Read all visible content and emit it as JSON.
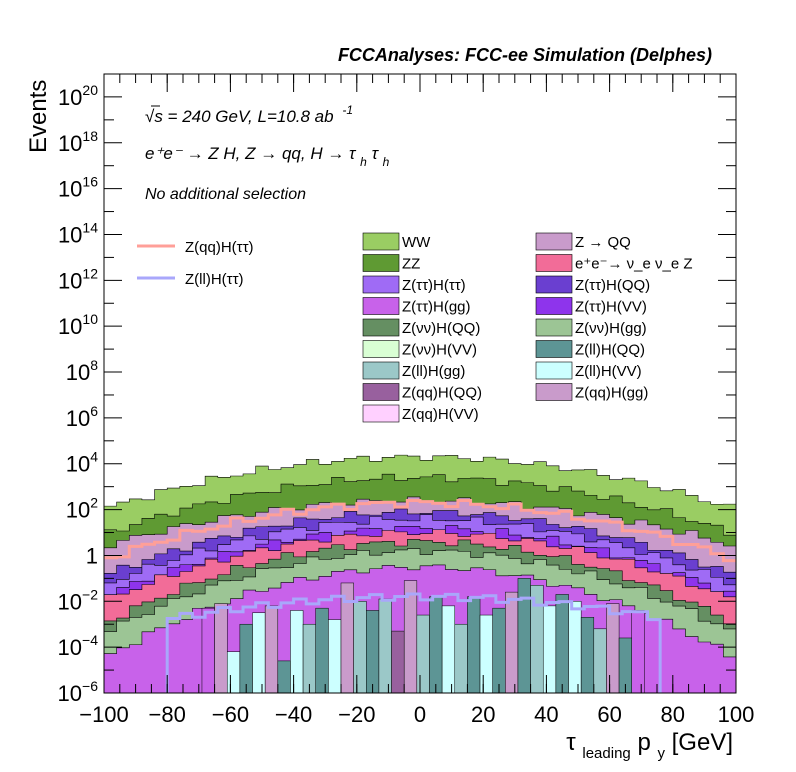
{
  "chart_data": {
    "type": "histogram",
    "title": "FCCAnalyses: FCC-ee Simulation (Delphes)",
    "annotations": {
      "energy": "√s = 240 GeV, L=10.8 ab",
      "energy_exp": "-1",
      "process": "e⁺e⁻ → Z H, Z → qq, H → τ",
      "process_sub1": "h",
      "process_tau2": "τ",
      "process_sub2": "h",
      "selection": "No additional selection"
    },
    "xlabel": "τ",
    "xlabel_sub": "leading",
    "xlabel_rest": " p",
    "xlabel_sub2": "y",
    "xlabel_unit": " [GeV]",
    "ylabel": "Events",
    "xlim": [
      -100,
      100
    ],
    "ylog": true,
    "ylim_exp": [
      -6,
      21
    ],
    "x_ticks": [
      "−100",
      "−80",
      "−60",
      "−40",
      "−20",
      "0",
      "20",
      "40",
      "60",
      "80",
      "100"
    ],
    "x_tick_values": [
      -100,
      -80,
      -60,
      -40,
      -20,
      0,
      20,
      40,
      60,
      80,
      100
    ],
    "y_ticks": [
      {
        "exp": -6,
        "base": "10",
        "sup": "−6"
      },
      {
        "exp": -4,
        "base": "10",
        "sup": "−4"
      },
      {
        "exp": -2,
        "base": "10",
        "sup": "−2"
      },
      {
        "exp": 0,
        "base": "1",
        "sup": ""
      },
      {
        "exp": 2,
        "base": "10",
        "sup": "2"
      },
      {
        "exp": 4,
        "base": "10",
        "sup": "4"
      },
      {
        "exp": 6,
        "base": "10",
        "sup": "6"
      },
      {
        "exp": 8,
        "base": "10",
        "sup": "8"
      },
      {
        "exp": 10,
        "base": "10",
        "sup": "10"
      },
      {
        "exp": 12,
        "base": "10",
        "sup": "12"
      },
      {
        "exp": 14,
        "base": "10",
        "sup": "14"
      },
      {
        "exp": 16,
        "base": "10",
        "sup": "16"
      },
      {
        "exp": 18,
        "base": "10",
        "sup": "18"
      },
      {
        "exp": 20,
        "base": "10",
        "sup": "20"
      }
    ],
    "bkg_envelopes": [
      {
        "name": "WW",
        "color": "#9ACD63",
        "center_exp": 4.3,
        "edge_exp": 2.0
      },
      {
        "name": "ZZ",
        "color": "#5F9A33",
        "center_exp": 3.4,
        "edge_exp": 0.9
      },
      {
        "name": "Z → QQ",
        "color": "#C99BCB",
        "center_exp": 2.4,
        "edge_exp": 0.4
      },
      {
        "name": "Z(ττ)H(QQ)",
        "color": "#6A3FD0",
        "center_exp": 1.9,
        "edge_exp": -0.9
      },
      {
        "name": "Z(ττ)H(ττ)",
        "color": "#9F6BF5",
        "center_exp": 1.6,
        "edge_exp": -1.3
      },
      {
        "name": "Z(ττ)H(VV)",
        "color": "#8E34EC",
        "center_exp": 1.2,
        "edge_exp": -1.8
      },
      {
        "name": "e⁺e⁻→ ν_e ν_e Z",
        "color": "#F26C98",
        "center_exp": 1.0,
        "edge_exp": -2.0
      },
      {
        "name": "Z(νν)H(QQ)",
        "color": "#658F62",
        "center_exp": 0.6,
        "edge_exp": -3.0
      },
      {
        "name": "Z(νν)H(gg)",
        "color": "#9CC595",
        "center_exp": 0.2,
        "edge_exp": -3.4
      },
      {
        "name": "Z(ττ)H(gg)",
        "color": "#C862EA",
        "center_exp": -0.5,
        "edge_exp": -4.5
      }
    ],
    "low_bars": {
      "x": [
        -67,
        -63,
        -59,
        -55,
        -51,
        -47,
        -43,
        -39,
        -35,
        -31,
        -27,
        -23,
        -19,
        -15,
        -11,
        -7,
        -3,
        1,
        5,
        9,
        13,
        17,
        21,
        25,
        29,
        33,
        37,
        41,
        45,
        49,
        53,
        57,
        61,
        65,
        69
      ],
      "exp": [
        -2.3,
        -2.1,
        -4.2,
        -3.0,
        -2.5,
        -2.2,
        -4.6,
        -2.4,
        -3.0,
        -2.3,
        -2.8,
        -1.2,
        -2.0,
        -2.4,
        -1.9,
        -3.3,
        -1.1,
        -2.6,
        -1.8,
        -2.2,
        -3.0,
        -1.8,
        -2.6,
        -2.3,
        -1.6,
        -1.0,
        -1.3,
        -2.2,
        -1.7,
        -2.0,
        -2.7,
        -3.2,
        -2.1,
        -3.6,
        -2.4
      ],
      "colors": [
        "#C862EA",
        "#C99BCB",
        "#CCFFFF",
        "#5D9595",
        "#CCFFFF",
        "#C99BCB",
        "#5D9595",
        "#CCFFFF",
        "#9BC8C8",
        "#5D9595",
        "#CCFFFF",
        "#C99BCB",
        "#9BC8C8",
        "#5D9595",
        "#9BC8C8",
        "#98609E",
        "#C99BCB",
        "#9BC8C8",
        "#5D9595",
        "#CCFFFF",
        "#9BC8C8",
        "#5D9595",
        "#CCFFFF",
        "#5D9595",
        "#C99BCB",
        "#5D9595",
        "#9BC8C8",
        "#CCFFFF",
        "#5D9595",
        "#CCFFFF",
        "#5D9595",
        "#9BC8C8",
        "#C99BCB",
        "#5D9595",
        "#C862EA"
      ]
    },
    "signal_lines": [
      {
        "name": "Z(qq)H(ττ)",
        "color": "#FF9F98",
        "center_exp": 2.3,
        "edge_exp": -0.2
      },
      {
        "name": "Z(ll)H(ττ)",
        "color": "#A9A7FB",
        "center_exp": -1.8,
        "edge_exp": -2.8,
        "range": [
          -80,
          76
        ]
      }
    ],
    "legend": {
      "placement": "top-right",
      "signals": [
        {
          "label": "Z(qq)H(ττ)",
          "color": "#FF9F98"
        },
        {
          "label": "Z(ll)H(ττ)",
          "color": "#A9A7FB"
        }
      ],
      "col1": [
        {
          "label": "WW",
          "color": "#9ACD63"
        },
        {
          "label": "ZZ",
          "color": "#5F9A33"
        },
        {
          "label": "Z(ττ)H(ττ)",
          "color": "#9F6BF5"
        },
        {
          "label": "Z(ττ)H(gg)",
          "color": "#C862EA"
        },
        {
          "label": "Z(νν)H(QQ)",
          "color": "#658F62"
        },
        {
          "label": "Z(νν)H(VV)",
          "color": "#D9FFD4"
        },
        {
          "label": "Z(ll)H(gg)",
          "color": "#9BC8C8"
        },
        {
          "label": "Z(qq)H(QQ)",
          "color": "#98609E"
        },
        {
          "label": "Z(qq)H(VV)",
          "color": "#FFD0FF"
        }
      ],
      "col2": [
        {
          "label": "Z → QQ",
          "color": "#C99BCB"
        },
        {
          "label": "e⁺e⁻→ ν_e ν_e Z",
          "color": "#F26C98"
        },
        {
          "label": "Z(ττ)H(QQ)",
          "color": "#6A3FD0"
        },
        {
          "label": "Z(ττ)H(VV)",
          "color": "#8E34EC"
        },
        {
          "label": "Z(νν)H(gg)",
          "color": "#9CC595"
        },
        {
          "label": "Z(ll)H(QQ)",
          "color": "#5D9595"
        },
        {
          "label": "Z(ll)H(VV)",
          "color": "#CCFFFF"
        },
        {
          "label": "Z(qq)H(gg)",
          "color": "#C99BCB"
        }
      ]
    }
  }
}
